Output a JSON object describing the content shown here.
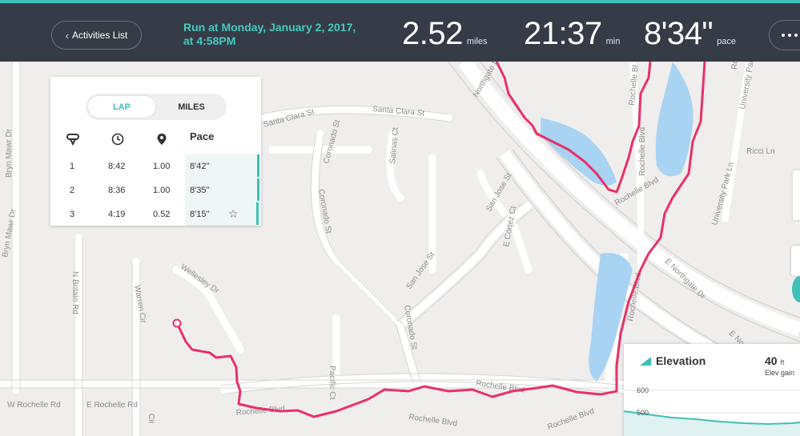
{
  "header": {
    "back_label": "Activities List",
    "run_title": "Run at Monday, January 2, 2017, at 4:58PM",
    "distance": {
      "value": "2.52",
      "unit": "miles"
    },
    "duration": {
      "value": "21:37",
      "unit": "min"
    },
    "pace": {
      "value": "8'34\"",
      "unit": "pace"
    }
  },
  "lap_panel": {
    "toggle": {
      "lap": "LAP",
      "miles": "MILES",
      "selected": "lap"
    },
    "pace_header": "Pace",
    "laps": [
      {
        "num": "1",
        "time": "8:42",
        "dist": "1.00",
        "pace": "8'42\"",
        "best": false,
        "pace_fraction": 0.8
      },
      {
        "num": "2",
        "time": "8:36",
        "dist": "1.00",
        "pace": "8'35\"",
        "best": false,
        "pace_fraction": 0.77
      },
      {
        "num": "3",
        "time": "4:19",
        "dist": "0.52",
        "pace": "8'15\"",
        "best": true,
        "pace_fraction": 0.7
      }
    ]
  },
  "elevation": {
    "title": "Elevation",
    "value": "40",
    "unit": "ft",
    "subtitle": "Elev gain",
    "ticks": [
      "600",
      "500"
    ]
  },
  "map": {
    "streets": [
      "Santa Clara St",
      "Santa Clara St",
      "Coronado St",
      "Coronado St",
      "Coronado St",
      "Salinas Ct",
      "San Jose St",
      "San Jose St",
      "E Cortez Ct",
      "Bryn Mawr Dr",
      "Bryn Mawr Dr",
      "Wellesley Dr",
      "Warren Cir",
      "N Britain Rd",
      "W Rochelle Rd",
      "E Rochelle Rd",
      "Rochelle Blvd",
      "Rochelle Blvd",
      "Rochelle Blvd",
      "Rochelle Blvd",
      "Rochelle Blvd",
      "Rochelle Blvd",
      "Rochelle Blvd",
      "E Northgate Dr",
      "E No",
      "Northgate Dr",
      "Pacific Ct",
      "University Park Ln",
      "University Park Ln",
      "Ricci Ln",
      "Rochelle Bl",
      "Rochelle Blvd",
      "Cir"
    ],
    "route_color": "#e8306a",
    "water_color": "#a9d3f3"
  },
  "colors": {
    "accent": "#3fbfb7",
    "header_bg": "#353c47"
  }
}
